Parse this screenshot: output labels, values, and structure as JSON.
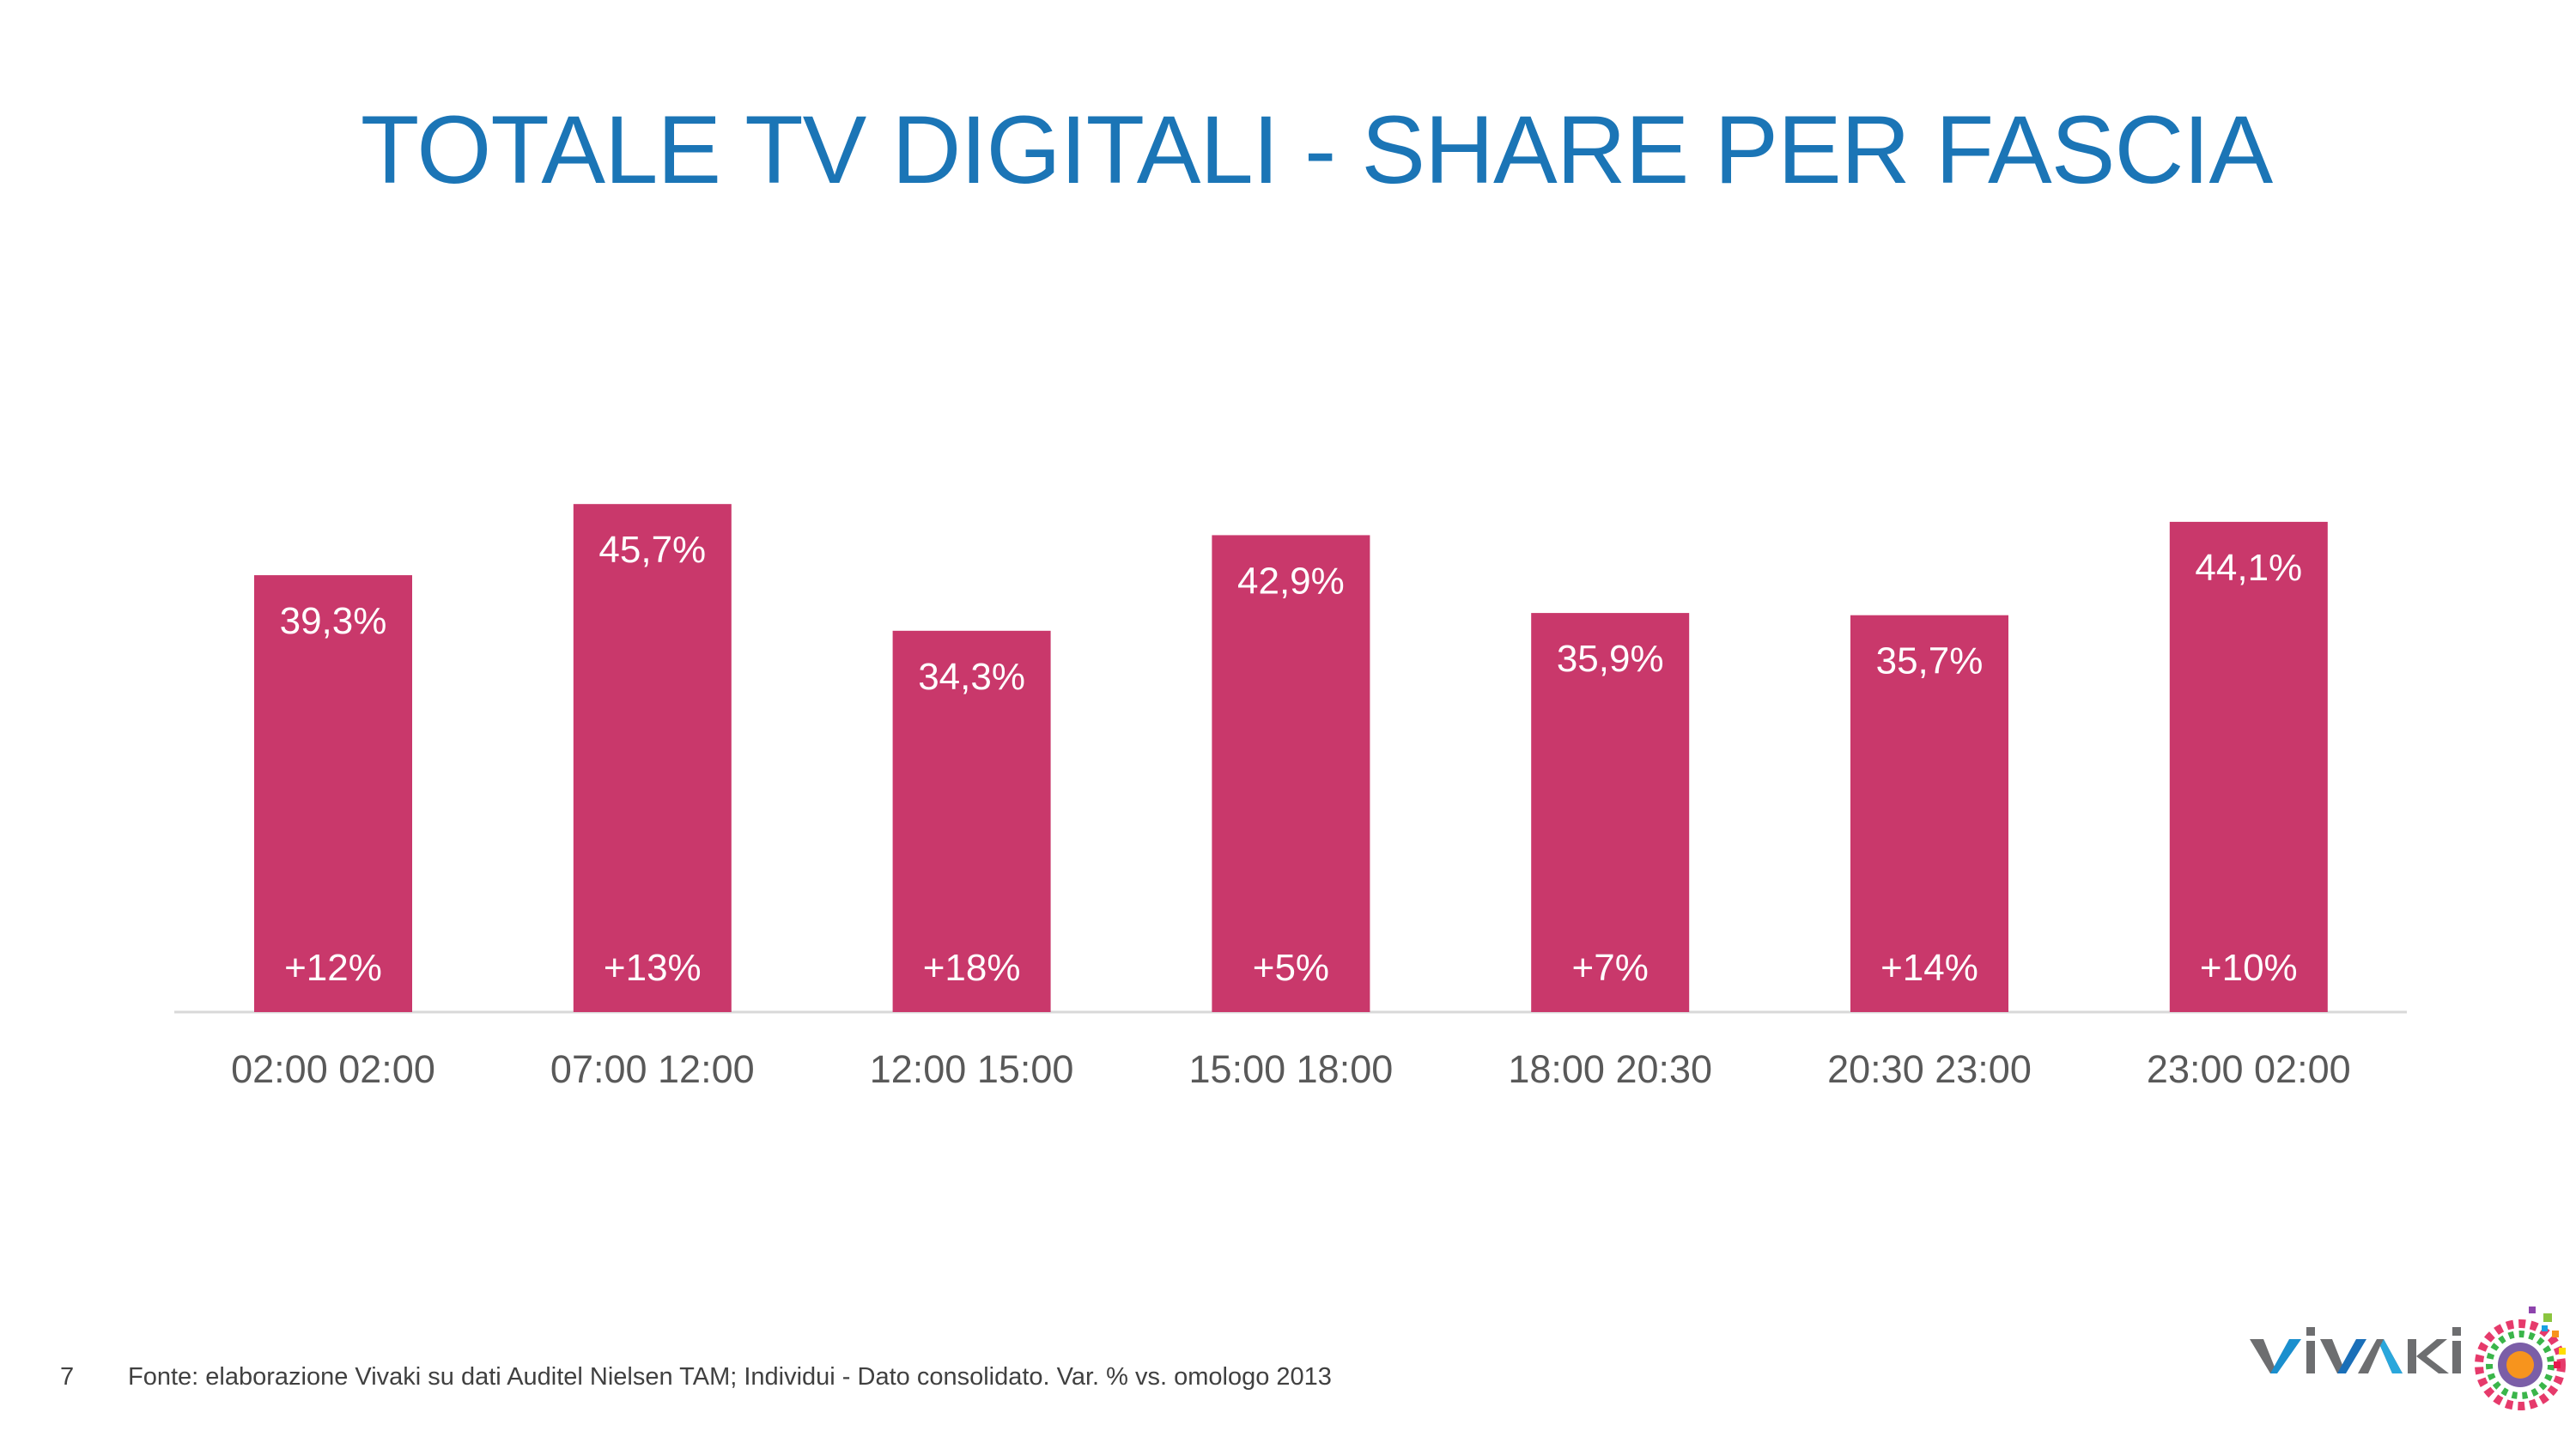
{
  "title": "TOTALE TV DIGITALI - SHARE PER FASCIA",
  "footer": {
    "page_number": "7",
    "source": "Fonte: elaborazione Vivaki su dati Auditel Nielsen TAM; Individui - Dato consolidato. Var. % vs. omologo 2013"
  },
  "logo": {
    "text": "VIVAKI"
  },
  "chart_data": {
    "type": "bar",
    "categories": [
      "02:00 02:00",
      "07:00 12:00",
      "12:00 15:00",
      "15:00 18:00",
      "18:00 20:30",
      "20:30 23:00",
      "23:00 02:00"
    ],
    "values": [
      39.3,
      45.7,
      34.3,
      42.9,
      35.9,
      35.7,
      44.1
    ],
    "value_labels": [
      "39,3%",
      "45,7%",
      "34,3%",
      "42,9%",
      "35,9%",
      "35,7%",
      "44,1%"
    ],
    "variation_labels": [
      "+12%",
      "+13%",
      "+18%",
      "+5%",
      "+7%",
      "+14%",
      "+10%"
    ],
    "ylim": [
      0,
      50
    ],
    "grid": false,
    "legend": "none",
    "bar_color": "#c9386b",
    "axis_color": "#d9d9d9"
  }
}
